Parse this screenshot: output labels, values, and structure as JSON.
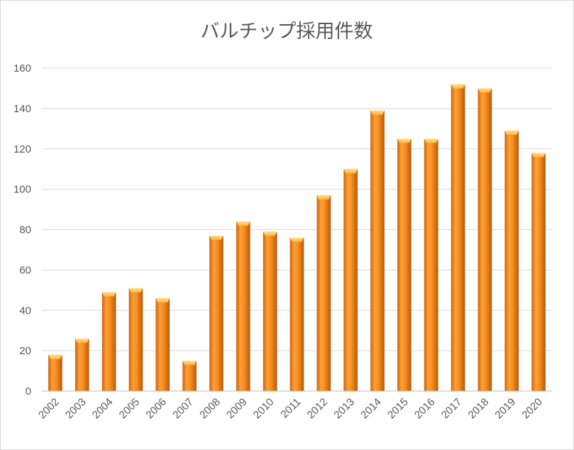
{
  "chart_data": {
    "type": "bar",
    "title": "バルチップ採用件数",
    "xlabel": "",
    "ylabel": "",
    "categories": [
      "2002",
      "2003",
      "2004",
      "2005",
      "2006",
      "2007",
      "2008",
      "2009",
      "2010",
      "2011",
      "2012",
      "2013",
      "2014",
      "2015",
      "2016",
      "2017",
      "2018",
      "2019",
      "2020"
    ],
    "values": [
      18,
      26,
      49,
      51,
      46,
      15,
      77,
      84,
      79,
      76,
      97,
      110,
      139,
      125,
      125,
      152,
      150,
      129,
      118
    ],
    "ylim": [
      0,
      160
    ],
    "yticks": [
      0,
      20,
      40,
      60,
      80,
      100,
      120,
      140,
      160
    ],
    "grid": true,
    "legend": "none",
    "bar_color": "#f28a1e",
    "bar_highlight": "#ffb347",
    "bar_shadow": "#c75f0a"
  }
}
